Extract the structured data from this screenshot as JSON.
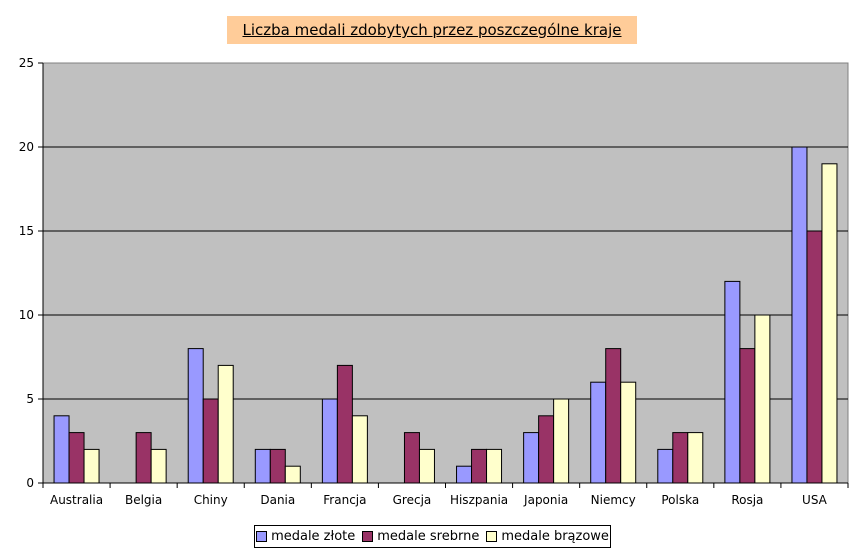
{
  "chart_data": {
    "type": "bar",
    "title": "Liczba medali zdobytych przez poszczególne kraje",
    "categories": [
      "Australia",
      "Belgia",
      "Chiny",
      "Dania",
      "Francja",
      "Grecja",
      "Hiszpania",
      "Japonia",
      "Niemcy",
      "Polska",
      "Rosja",
      "USA"
    ],
    "series": [
      {
        "name": "medale złote",
        "color": "#9999ff",
        "values": [
          4,
          0,
          8,
          2,
          5,
          0,
          1,
          3,
          6,
          2,
          12,
          20
        ]
      },
      {
        "name": "medale srebrne",
        "color": "#993366",
        "values": [
          3,
          3,
          5,
          2,
          7,
          3,
          2,
          4,
          8,
          3,
          8,
          15
        ]
      },
      {
        "name": "medale brązowe",
        "color": "#ffffcc",
        "values": [
          2,
          2,
          7,
          1,
          4,
          2,
          2,
          5,
          6,
          3,
          10,
          19
        ]
      }
    ],
    "ylim": [
      0,
      25
    ],
    "yticks": [
      0,
      5,
      10,
      15,
      20,
      25
    ],
    "grid": true,
    "plot_background": "#c0c0c0",
    "legend_position": "bottom"
  }
}
